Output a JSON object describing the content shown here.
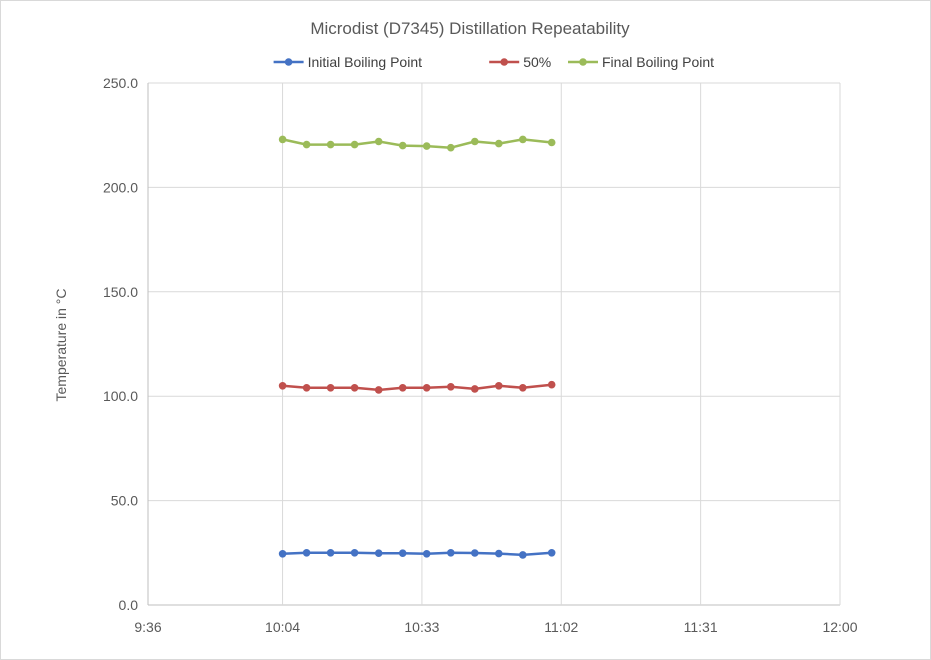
{
  "chart_data": {
    "type": "line",
    "title": "Microdist (D7345) Distillation Repeatability",
    "xlabel": "",
    "ylabel": "Temperature in °C",
    "x_tick_labels": [
      "9:36",
      "10:04",
      "10:33",
      "11:02",
      "11:31",
      "12:00"
    ],
    "y_tick_labels": [
      "0.0",
      "50.0",
      "100.0",
      "150.0",
      "200.0",
      "250.0"
    ],
    "xlim": [
      "9:36",
      "12:00"
    ],
    "ylim": [
      0,
      250
    ],
    "x": [
      "10:04",
      "10:09",
      "10:14",
      "10:19",
      "10:24",
      "10:29",
      "10:34",
      "10:39",
      "10:44",
      "10:49",
      "10:54",
      "11:00"
    ],
    "x_minutes_since_936": [
      28,
      33,
      38,
      43,
      48,
      53,
      58,
      63,
      68,
      73,
      78,
      84
    ],
    "grid": {
      "vertical": true,
      "horizontal": true
    },
    "legend_position": "top",
    "series": [
      {
        "name": "Initial Boiling Point",
        "color": "#4472c4",
        "values": [
          24.5,
          25.0,
          25.0,
          25.0,
          24.8,
          24.8,
          24.5,
          25.0,
          24.9,
          24.6,
          24.0,
          25.0
        ]
      },
      {
        "name": "50%",
        "color": "#c0504d",
        "values": [
          105.0,
          104.0,
          104.0,
          104.0,
          103.0,
          104.0,
          104.0,
          104.5,
          103.5,
          105.0,
          104.0,
          105.5
        ]
      },
      {
        "name": "Final Boiling Point",
        "color": "#9bbb59",
        "values": [
          223.0,
          220.5,
          220.5,
          220.5,
          222.0,
          220.0,
          219.8,
          219.0,
          222.0,
          221.0,
          223.0,
          221.5
        ]
      }
    ]
  }
}
